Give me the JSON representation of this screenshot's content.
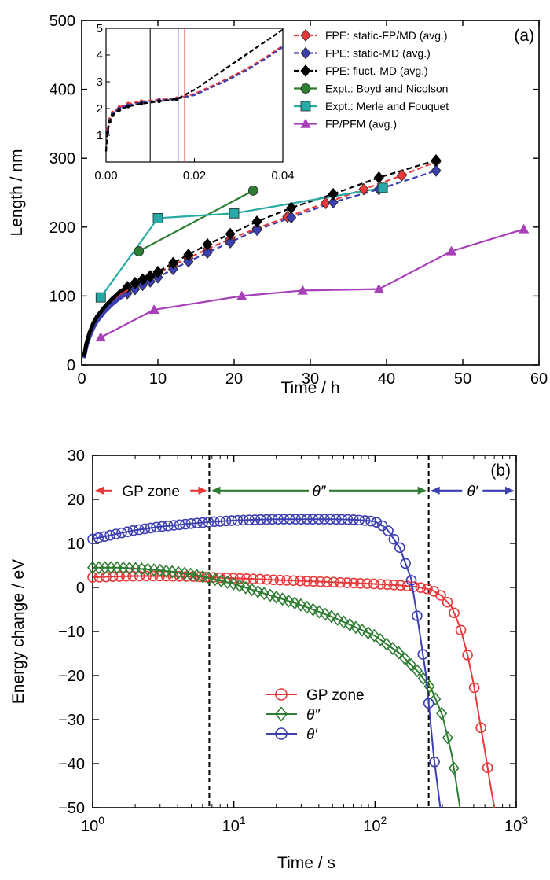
{
  "chart_data": [
    {
      "type": "line",
      "panel_label": "(a)",
      "xlabel": "Time / h",
      "ylabel": "Length / nm",
      "xlim": [
        0,
        60
      ],
      "ylim": [
        0,
        500
      ],
      "xticks": [
        "0",
        "10",
        "20",
        "30",
        "40",
        "50",
        "60"
      ],
      "yticks": [
        "0",
        "100",
        "200",
        "300",
        "400",
        "500"
      ],
      "legend_position": "top-right",
      "series": [
        {
          "name": "FPE: static-FP/MD (avg.)",
          "color": "#e8393a",
          "marker": "diamond",
          "dash": true,
          "x": [
            0.3,
            0.6,
            1,
            1.5,
            2,
            3,
            4,
            5,
            6,
            7,
            8,
            9,
            10,
            12,
            14,
            16.5,
            19.5,
            23,
            27,
            32,
            37,
            42,
            46.5
          ],
          "y": [
            12,
            30,
            45,
            58,
            68,
            82,
            94,
            103,
            110,
            116,
            122,
            128,
            133,
            145,
            155,
            168,
            183,
            198,
            215,
            235,
            255,
            275,
            295
          ]
        },
        {
          "name": "FPE: static-MD (avg.)",
          "color": "#3b3fb0",
          "marker": "diamond",
          "dash": true,
          "x": [
            0.3,
            0.6,
            1,
            1.5,
            2,
            3,
            4,
            5,
            6,
            7,
            8,
            9,
            10,
            12,
            14,
            16.5,
            19.5,
            23,
            27.5,
            33,
            39,
            46.5
          ],
          "y": [
            10,
            26,
            40,
            53,
            63,
            77,
            88,
            97,
            104,
            110,
            116,
            121,
            127,
            139,
            150,
            163,
            178,
            196,
            214,
            236,
            255,
            282
          ]
        },
        {
          "name": "FPE: fluct.-MD (avg.)",
          "color": "#000000",
          "marker": "diamond",
          "dash": true,
          "x": [
            0.3,
            0.6,
            1,
            1.5,
            2,
            3,
            4,
            5,
            6,
            7,
            8,
            9,
            10,
            12,
            14,
            16.5,
            19.5,
            23,
            27.5,
            33,
            39,
            46.5
          ],
          "y": [
            12,
            30,
            46,
            60,
            70,
            84,
            96,
            106,
            113,
            119,
            124,
            129,
            135,
            148,
            160,
            175,
            190,
            208,
            228,
            248,
            272,
            297
          ]
        },
        {
          "name": "Expt.: Boyd and Nicolson",
          "color": "#2e7d32",
          "marker": "circle",
          "dash": false,
          "x": [
            7.5,
            22.5
          ],
          "y": [
            165,
            253
          ]
        },
        {
          "name": "Expt.: Merle and Fouquet",
          "color": "#27aaa6",
          "marker": "square",
          "dash": false,
          "x": [
            2.5,
            10,
            20,
            39.5
          ],
          "y": [
            98,
            213,
            220,
            257
          ]
        },
        {
          "name": "FP/PFM (avg.)",
          "color": "#a63fb8",
          "marker": "triangle",
          "dash": false,
          "x": [
            2.5,
            9.5,
            21,
            29,
            39,
            48.5,
            58
          ],
          "y": [
            40,
            80,
            100,
            108,
            110,
            165,
            197
          ]
        }
      ],
      "inset": {
        "xlim": [
          0,
          0.04
        ],
        "ylim": [
          0,
          5
        ],
        "xticks": [
          "0.00",
          "0.02",
          "0.04"
        ],
        "yticks": [
          "1",
          "2",
          "3",
          "4",
          "5"
        ],
        "vlines": [
          {
            "x": 0.01,
            "color": "#333333"
          },
          {
            "x": 0.0163,
            "color": "#3b3fb0"
          },
          {
            "x": 0.0178,
            "color": "#e8393a"
          }
        ],
        "series": [
          {
            "name": "FPE: static-FP/MD (avg.)",
            "color": "#e8393a",
            "x": [
              0,
              0.0003,
              0.0008,
              0.0015,
              0.003,
              0.005,
              0.008,
              0.012,
              0.016,
              0.02,
              0.024,
              0.028,
              0.032,
              0.036,
              0.04
            ],
            "y": [
              0.4,
              1.2,
              1.6,
              1.85,
              2.05,
              2.18,
              2.27,
              2.33,
              2.38,
              2.55,
              2.85,
              3.15,
              3.5,
              3.9,
              4.35
            ]
          },
          {
            "name": "FPE: static-MD (avg.)",
            "color": "#3b3fb0",
            "x": [
              0,
              0.0003,
              0.0008,
              0.0015,
              0.003,
              0.005,
              0.008,
              0.012,
              0.016,
              0.02,
              0.024,
              0.028,
              0.032,
              0.036,
              0.04
            ],
            "y": [
              0.4,
              1.15,
              1.55,
              1.8,
              2.0,
              2.12,
              2.22,
              2.3,
              2.36,
              2.5,
              2.8,
              3.1,
              3.45,
              3.85,
              4.3
            ]
          },
          {
            "name": "FPE: fluct.-MD (avg.)",
            "color": "#000000",
            "x": [
              0,
              0.0003,
              0.0008,
              0.0015,
              0.003,
              0.005,
              0.008,
              0.012,
              0.016,
              0.02,
              0.024,
              0.028,
              0.032,
              0.036,
              0.04
            ],
            "y": [
              0.4,
              1.1,
              1.5,
              1.75,
              1.95,
              2.08,
              2.18,
              2.27,
              2.35,
              2.7,
              3.15,
              3.6,
              4.05,
              4.5,
              4.95
            ]
          }
        ]
      }
    },
    {
      "type": "line",
      "panel_label": "(b)",
      "xlabel": "Time / s",
      "ylabel": "Energy change / eV",
      "x_scale": "log",
      "xlim": [
        1,
        1000
      ],
      "ylim": [
        -50,
        30
      ],
      "xticks": [
        {
          "base": "10",
          "exp": "0"
        },
        {
          "base": "10",
          "exp": "1"
        },
        {
          "base": "10",
          "exp": "2"
        },
        {
          "base": "10",
          "exp": "3"
        }
      ],
      "yticks": [
        "30",
        "20",
        "10",
        "0",
        "−10",
        "−20",
        "−30",
        "−40",
        "−50"
      ],
      "legend_position": "bottom-center",
      "zones": [
        {
          "label": "GP zone",
          "from": 1,
          "to": 6.7,
          "color": "#e8393a"
        },
        {
          "label": "θ″",
          "from": 6.7,
          "to": 240,
          "color": "#2e7d32"
        },
        {
          "label": "θ′",
          "from": 240,
          "to": 1000,
          "color": "#3b3fb0"
        }
      ],
      "boundaries": [
        6.7,
        240
      ],
      "series": [
        {
          "name": "GP zone",
          "color": "#e8393a",
          "marker": "circle",
          "x": [
            1,
            1.5,
            2,
            3,
            5,
            7,
            10,
            15,
            20,
            30,
            50,
            70,
            100,
            150,
            200,
            250,
            300,
            350,
            400,
            450,
            500,
            550,
            600,
            650,
            700
          ],
          "y": [
            2.3,
            2.5,
            2.6,
            2.6,
            2.5,
            2.3,
            2.1,
            1.9,
            1.7,
            1.5,
            1.2,
            1.0,
            0.8,
            0.5,
            0.1,
            -0.5,
            -2,
            -4.5,
            -9,
            -15,
            -22,
            -30,
            -37,
            -44,
            -50
          ]
        },
        {
          "name": "θ″",
          "color": "#2e7d32",
          "marker": "diamond",
          "x": [
            1,
            1.5,
            2,
            3,
            5,
            7,
            10,
            15,
            20,
            30,
            50,
            70,
            100,
            150,
            200,
            250,
            300,
            350,
            400
          ],
          "y": [
            4.5,
            4.5,
            4.3,
            3.9,
            3.0,
            2.0,
            0.8,
            -1.0,
            -2.2,
            -4.0,
            -6.7,
            -8.8,
            -11,
            -15,
            -19,
            -23,
            -29,
            -38,
            -50
          ]
        },
        {
          "name": "θ′",
          "color": "#3b3fb0",
          "marker": "circle",
          "x": [
            1,
            1.5,
            2,
            3,
            5,
            7,
            10,
            15,
            20,
            30,
            50,
            70,
            100,
            120,
            150,
            180,
            200,
            230,
            260,
            290
          ],
          "y": [
            11,
            12.2,
            13.0,
            13.8,
            14.5,
            14.9,
            15.2,
            15.4,
            15.5,
            15.5,
            15.5,
            15.4,
            15.0,
            13.5,
            9,
            2,
            -7,
            -20,
            -38,
            -50
          ]
        }
      ]
    }
  ]
}
